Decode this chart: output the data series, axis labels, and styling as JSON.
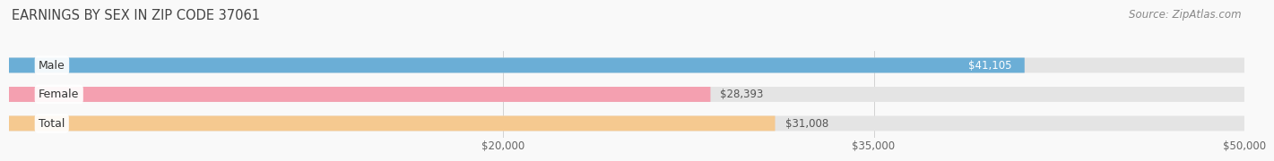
{
  "title": "EARNINGS BY SEX IN ZIP CODE 37061",
  "source": "Source: ZipAtlas.com",
  "categories": [
    "Male",
    "Female",
    "Total"
  ],
  "values": [
    41105,
    28393,
    31008
  ],
  "bar_colors": [
    "#6baed6",
    "#f4a0b0",
    "#f5c990"
  ],
  "bar_bg_color": "#e4e4e4",
  "xlim_min": 0,
  "xlim_max": 50000,
  "axis_min": 20000,
  "axis_max": 50000,
  "xticks": [
    20000,
    35000,
    50000
  ],
  "xtick_labels": [
    "$20,000",
    "$35,000",
    "$50,000"
  ],
  "value_labels": [
    "$41,105",
    "$28,393",
    "$31,008"
  ],
  "value_inside": [
    true,
    false,
    false
  ],
  "background_color": "#f9f9f9",
  "bar_height": 0.52,
  "bar_gap": 0.18,
  "title_fontsize": 10.5,
  "source_fontsize": 8.5,
  "tick_fontsize": 8.5,
  "value_fontsize": 8.5,
  "label_fontsize": 9
}
